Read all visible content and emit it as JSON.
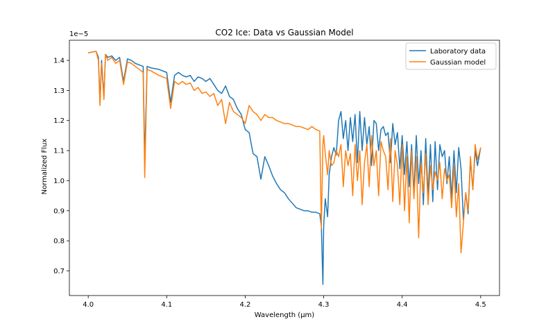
{
  "chart_data": {
    "type": "line",
    "title": "CO2 Ice: Data vs Gaussian Model",
    "xlabel": "Wavelength (μm)",
    "ylabel": "Normalized Flux",
    "y_scale_label": "1e−5",
    "xlim": [
      3.976,
      4.524
    ],
    "ylim": [
      0.618,
      1.467
    ],
    "x_ticks": [
      4.0,
      4.1,
      4.2,
      4.3,
      4.4,
      4.5
    ],
    "x_tick_labels": [
      "4.0",
      "4.1",
      "4.2",
      "4.3",
      "4.4",
      "4.5"
    ],
    "y_ticks": [
      0.7,
      0.8,
      0.9,
      1.0,
      1.1,
      1.2,
      1.3,
      1.4
    ],
    "y_tick_labels": [
      "0.7",
      "0.8",
      "0.9",
      "1.0",
      "1.1",
      "1.2",
      "1.3",
      "1.4"
    ],
    "grid": false,
    "legend_position": "top-right",
    "series": [
      {
        "name": "Laboratory data",
        "color": "#1f77b4",
        "x": [
          4.0,
          4.01,
          4.013,
          4.015,
          4.017,
          4.02,
          4.022,
          4.025,
          4.03,
          4.035,
          4.04,
          4.045,
          4.05,
          4.055,
          4.06,
          4.065,
          4.07,
          4.072,
          4.075,
          4.08,
          4.09,
          4.1,
          4.105,
          4.11,
          4.115,
          4.12,
          4.125,
          4.13,
          4.135,
          4.14,
          4.145,
          4.15,
          4.155,
          4.16,
          4.165,
          4.17,
          4.175,
          4.18,
          4.185,
          4.19,
          4.195,
          4.2,
          4.205,
          4.21,
          4.215,
          4.22,
          4.225,
          4.23,
          4.235,
          4.24,
          4.245,
          4.25,
          4.255,
          4.26,
          4.265,
          4.27,
          4.275,
          4.28,
          4.285,
          4.29,
          4.295,
          4.297,
          4.299,
          4.3,
          4.302,
          4.305,
          4.307,
          4.31,
          4.313,
          4.316,
          4.319,
          4.322,
          4.325,
          4.328,
          4.331,
          4.334,
          4.337,
          4.34,
          4.343,
          4.346,
          4.349,
          4.352,
          4.355,
          4.358,
          4.361,
          4.364,
          4.367,
          4.37,
          4.373,
          4.376,
          4.379,
          4.382,
          4.385,
          4.388,
          4.391,
          4.394,
          4.397,
          4.4,
          4.403,
          4.406,
          4.409,
          4.412,
          4.415,
          4.418,
          4.421,
          4.424,
          4.427,
          4.43,
          4.433,
          4.436,
          4.439,
          4.442,
          4.445,
          4.448,
          4.451,
          4.454,
          4.457,
          4.46,
          4.463,
          4.466,
          4.469,
          4.472,
          4.475,
          4.478,
          4.481,
          4.484,
          4.487,
          4.49,
          4.493,
          4.496,
          4.5
        ],
        "y": [
          1.425,
          1.43,
          1.41,
          1.26,
          1.4,
          1.28,
          1.42,
          1.41,
          1.415,
          1.4,
          1.41,
          1.33,
          1.405,
          1.4,
          1.39,
          1.385,
          1.38,
          1.07,
          1.38,
          1.375,
          1.37,
          1.36,
          1.26,
          1.35,
          1.36,
          1.35,
          1.345,
          1.35,
          1.33,
          1.345,
          1.34,
          1.33,
          1.34,
          1.32,
          1.3,
          1.29,
          1.315,
          1.28,
          1.27,
          1.24,
          1.22,
          1.17,
          1.16,
          1.09,
          1.08,
          1.005,
          1.08,
          1.05,
          1.015,
          0.99,
          0.97,
          0.96,
          0.94,
          0.925,
          0.91,
          0.905,
          0.9,
          0.9,
          0.895,
          0.895,
          0.89,
          0.85,
          0.655,
          0.85,
          0.94,
          0.88,
          1.02,
          1.08,
          1.11,
          1.085,
          1.2,
          1.23,
          1.14,
          1.2,
          1.1,
          1.21,
          1.13,
          1.22,
          1.06,
          1.23,
          1.1,
          1.21,
          1.12,
          1.18,
          1.05,
          1.2,
          1.19,
          1.1,
          1.17,
          1.18,
          1.15,
          1.16,
          1.06,
          1.19,
          1.12,
          1.16,
          1.04,
          1.15,
          1.02,
          1.13,
          0.98,
          1.12,
          0.96,
          1.15,
          0.99,
          1.1,
          0.92,
          1.14,
          0.95,
          1.12,
          0.93,
          1.13,
          0.97,
          1.12,
          1.08,
          1.1,
          0.99,
          1.08,
          0.94,
          1.1,
          0.96,
          1.11,
          1.04,
          0.87,
          0.96,
          0.89,
          1.07,
          0.97,
          1.1,
          1.05,
          1.11
        ]
      },
      {
        "name": "Gaussian model",
        "color": "#ff7f0e",
        "x": [
          4.0,
          4.01,
          4.013,
          4.015,
          4.017,
          4.02,
          4.022,
          4.025,
          4.03,
          4.035,
          4.04,
          4.045,
          4.05,
          4.055,
          4.06,
          4.065,
          4.07,
          4.072,
          4.075,
          4.08,
          4.09,
          4.1,
          4.105,
          4.11,
          4.115,
          4.12,
          4.125,
          4.13,
          4.135,
          4.14,
          4.145,
          4.15,
          4.155,
          4.16,
          4.165,
          4.17,
          4.175,
          4.18,
          4.185,
          4.19,
          4.195,
          4.2,
          4.205,
          4.21,
          4.215,
          4.22,
          4.225,
          4.23,
          4.235,
          4.24,
          4.245,
          4.25,
          4.255,
          4.26,
          4.265,
          4.27,
          4.275,
          4.28,
          4.285,
          4.29,
          4.295,
          4.297,
          4.299,
          4.3,
          4.302,
          4.305,
          4.307,
          4.31,
          4.313,
          4.316,
          4.319,
          4.322,
          4.325,
          4.328,
          4.331,
          4.334,
          4.337,
          4.34,
          4.343,
          4.346,
          4.349,
          4.352,
          4.355,
          4.358,
          4.361,
          4.364,
          4.367,
          4.37,
          4.373,
          4.376,
          4.379,
          4.382,
          4.385,
          4.388,
          4.391,
          4.394,
          4.397,
          4.4,
          4.403,
          4.406,
          4.409,
          4.412,
          4.415,
          4.418,
          4.421,
          4.424,
          4.427,
          4.43,
          4.433,
          4.436,
          4.439,
          4.442,
          4.445,
          4.448,
          4.451,
          4.454,
          4.457,
          4.46,
          4.463,
          4.466,
          4.469,
          4.472,
          4.475,
          4.478,
          4.481,
          4.484,
          4.487,
          4.49,
          4.493,
          4.496,
          4.5
        ],
        "y": [
          1.425,
          1.43,
          1.4,
          1.25,
          1.39,
          1.27,
          1.42,
          1.4,
          1.41,
          1.39,
          1.4,
          1.32,
          1.395,
          1.39,
          1.38,
          1.37,
          1.36,
          1.01,
          1.37,
          1.365,
          1.35,
          1.34,
          1.24,
          1.33,
          1.32,
          1.33,
          1.32,
          1.325,
          1.3,
          1.31,
          1.29,
          1.295,
          1.28,
          1.29,
          1.25,
          1.27,
          1.19,
          1.26,
          1.23,
          1.22,
          1.21,
          1.19,
          1.25,
          1.23,
          1.22,
          1.2,
          1.22,
          1.21,
          1.21,
          1.2,
          1.195,
          1.19,
          1.19,
          1.185,
          1.18,
          1.18,
          1.175,
          1.17,
          1.18,
          1.17,
          1.165,
          0.84,
          1.12,
          1.15,
          1.09,
          1.02,
          1.1,
          1.05,
          1.06,
          1.1,
          1.08,
          1.12,
          0.98,
          1.1,
          1.05,
          1.09,
          0.95,
          1.12,
          1.0,
          1.1,
          0.92,
          1.06,
          1.12,
          0.98,
          1.15,
          1.05,
          1.1,
          0.95,
          1.13,
          1.1,
          1.08,
          0.97,
          1.14,
          0.93,
          1.1,
          1.05,
          0.92,
          1.12,
          0.9,
          1.08,
          0.86,
          1.1,
          0.94,
          1.08,
          0.81,
          1.06,
          0.96,
          1.09,
          0.92,
          1.05,
          0.97,
          1.03,
          1.0,
          1.06,
          0.94,
          1.04,
          1.0,
          1.02,
          0.91,
          1.05,
          0.88,
          0.99,
          0.76,
          0.86,
          0.96,
          0.9,
          1.08,
          0.97,
          1.12,
          1.07,
          1.11
        ]
      }
    ]
  }
}
